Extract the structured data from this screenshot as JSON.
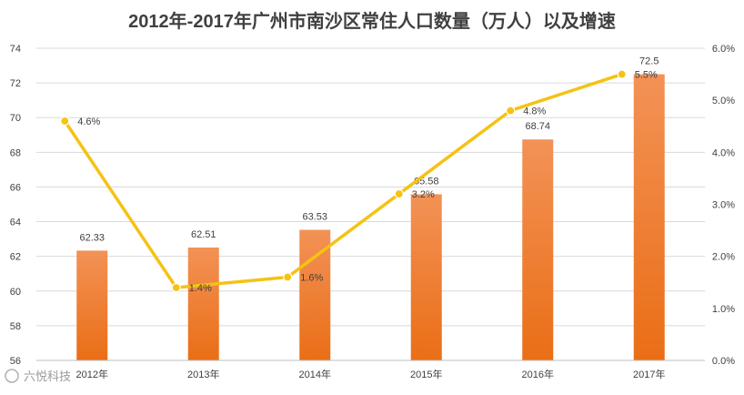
{
  "chart_data": {
    "type": "bar",
    "title": "2012年-2017年广州市南沙区常住人口数量（万人）以及增速",
    "categories": [
      "2012年",
      "2013年",
      "2014年",
      "2015年",
      "2016年",
      "2017年"
    ],
    "series": [
      {
        "type": "bar",
        "axis": "left",
        "values": [
          62.33,
          62.51,
          63.53,
          65.58,
          68.74,
          72.5
        ],
        "labels": [
          "62.33",
          "62.51",
          "63.53",
          "65.58",
          "68.74",
          "72.5"
        ],
        "color": "#F0822C"
      },
      {
        "type": "line",
        "axis": "right",
        "values": [
          4.6,
          1.4,
          1.6,
          3.2,
          4.8,
          5.5
        ],
        "labels": [
          "4.6%",
          "1.4%",
          "1.6%",
          "3.2%",
          "4.8%",
          "5.5%"
        ],
        "color": "#F5C215"
      }
    ],
    "y_left": {
      "min": 56,
      "max": 74,
      "step": 2,
      "ticks": [
        "56",
        "58",
        "60",
        "62",
        "64",
        "66",
        "68",
        "70",
        "72",
        "74"
      ]
    },
    "y_right": {
      "min": 0,
      "max": 6,
      "step": 1,
      "ticks": [
        "0.0%",
        "1.0%",
        "2.0%",
        "3.0%",
        "4.0%",
        "5.0%",
        "6.0%"
      ]
    },
    "grid": true,
    "legend": "none"
  },
  "watermark": "六悦科技",
  "colors": {
    "bar_top": "#F39256",
    "bar_bottom": "#EA6E16",
    "line": "#F5C215",
    "grid": "#D9D9D9",
    "text": "#404040"
  }
}
